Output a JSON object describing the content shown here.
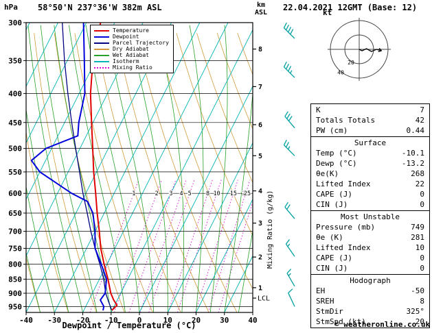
{
  "header": {
    "hpa": "hPa",
    "title": "58°50'N 237°36'W 382m ASL",
    "datetime": "22.04.2021 12GMT (Base: 12)",
    "alt_km": "km",
    "alt_asl": "ASL"
  },
  "legend": {
    "items": [
      {
        "label": "Temperature",
        "color": "#e00000",
        "dash": "solid"
      },
      {
        "label": "Dewpoint",
        "color": "#0000dd",
        "dash": "solid"
      },
      {
        "label": "Parcel Trajectory",
        "color": "#000080",
        "dash": "solid"
      },
      {
        "label": "Dry Adiabat",
        "color": "#d29a3a",
        "dash": "solid"
      },
      {
        "label": "Wet Adiabat",
        "color": "#28a028",
        "dash": "solid"
      },
      {
        "label": "Isotherm",
        "color": "#00b4b4",
        "dash": "solid"
      },
      {
        "label": "Mixing Ratio",
        "color": "#d800d8",
        "dash": "dotted"
      }
    ]
  },
  "axes": {
    "x_label": "Dewpoint / Temperature (°C)",
    "x_ticks": [
      -40,
      -30,
      -20,
      -10,
      0,
      10,
      20,
      30,
      40
    ],
    "pressure_unit": "hPa",
    "pressure_ticks": [
      300,
      350,
      400,
      450,
      500,
      550,
      600,
      650,
      700,
      750,
      800,
      850,
      900,
      950
    ],
    "km_ticks": [
      {
        "km": 8,
        "p": 334
      },
      {
        "km": 7,
        "p": 389
      },
      {
        "km": 6,
        "p": 454
      },
      {
        "km": 5,
        "p": 515
      },
      {
        "km": 4,
        "p": 594
      },
      {
        "km": 3,
        "p": 677
      },
      {
        "km": 2,
        "p": 777
      },
      {
        "km": 1,
        "p": 880
      }
    ],
    "lcl": {
      "label": "LCL",
      "p": 918
    },
    "mixing_label": "Mixing Ratio (g/kg)",
    "mixing_values": [
      1,
      2,
      3,
      4,
      5,
      8,
      10,
      15,
      20,
      25
    ]
  },
  "chart_data": {
    "type": "skewt-sounding",
    "pressure_range": [
      300,
      973
    ],
    "temp_range": [
      -40,
      40
    ],
    "temperature": [
      [
        965,
        -10.1
      ],
      [
        945,
        -9.2
      ],
      [
        925,
        -11.3
      ],
      [
        900,
        -13.5
      ],
      [
        850,
        -17
      ],
      [
        800,
        -21
      ],
      [
        750,
        -25
      ],
      [
        700,
        -28.5
      ],
      [
        650,
        -32.5
      ],
      [
        600,
        -36.5
      ],
      [
        550,
        -41
      ],
      [
        500,
        -45.5
      ],
      [
        450,
        -50.5
      ],
      [
        400,
        -56
      ],
      [
        350,
        -61
      ],
      [
        300,
        -65
      ]
    ],
    "dewpoint": [
      [
        965,
        -13.2
      ],
      [
        950,
        -13.6
      ],
      [
        925,
        -16
      ],
      [
        900,
        -15.5
      ],
      [
        850,
        -17.5
      ],
      [
        800,
        -22
      ],
      [
        750,
        -27
      ],
      [
        700,
        -30
      ],
      [
        650,
        -34
      ],
      [
        620,
        -38
      ],
      [
        600,
        -45
      ],
      [
        550,
        -60
      ],
      [
        525,
        -65
      ],
      [
        500,
        -62
      ],
      [
        475,
        -53
      ],
      [
        450,
        -55
      ],
      [
        400,
        -58
      ],
      [
        350,
        -64
      ],
      [
        300,
        -71
      ]
    ],
    "parcel": [
      [
        965,
        -10.1
      ],
      [
        930,
        -12.9
      ],
      [
        900,
        -15.3
      ],
      [
        850,
        -18.5
      ],
      [
        800,
        -22.5
      ],
      [
        750,
        -27
      ],
      [
        700,
        -31.5
      ],
      [
        650,
        -36
      ],
      [
        600,
        -41
      ],
      [
        550,
        -46
      ],
      [
        500,
        -51.5
      ],
      [
        450,
        -57.5
      ],
      [
        400,
        -64
      ],
      [
        350,
        -71
      ],
      [
        300,
        -78.5
      ]
    ],
    "wind_barbs": [
      {
        "p": 320,
        "spd": 40,
        "dir": 315
      },
      {
        "p": 375,
        "spd": 35,
        "dir": 315
      },
      {
        "p": 460,
        "spd": 30,
        "dir": 320
      },
      {
        "p": 515,
        "spd": 25,
        "dir": 315
      },
      {
        "p": 665,
        "spd": 20,
        "dir": 320
      },
      {
        "p": 775,
        "spd": 15,
        "dir": 325
      },
      {
        "p": 875,
        "spd": 15,
        "dir": 330
      },
      {
        "p": 950,
        "spd": 10,
        "dir": 335
      }
    ],
    "hodograph": {
      "unit": "kt",
      "rings": [
        20,
        40
      ],
      "trace": [
        [
          0,
          0
        ],
        [
          4,
          -2
        ],
        [
          10,
          1
        ],
        [
          17,
          -3
        ],
        [
          24,
          0
        ],
        [
          31,
          -2
        ]
      ]
    }
  },
  "stats": {
    "sections": [
      {
        "header": "",
        "rows": [
          [
            "K",
            "7"
          ],
          [
            "Totals Totals",
            "42"
          ],
          [
            "PW (cm)",
            "0.44"
          ]
        ]
      },
      {
        "header": "Surface",
        "rows": [
          [
            "Temp (°C)",
            "-10.1"
          ],
          [
            "Dewp (°C)",
            "-13.2"
          ],
          [
            "θe(K)",
            "268"
          ],
          [
            "Lifted Index",
            "22"
          ],
          [
            "CAPE (J)",
            "0"
          ],
          [
            "CIN (J)",
            "0"
          ]
        ]
      },
      {
        "header": "Most Unstable",
        "rows": [
          [
            "Pressure (mb)",
            "749"
          ],
          [
            "θe (K)",
            "281"
          ],
          [
            "Lifted Index",
            "10"
          ],
          [
            "CAPE (J)",
            "0"
          ],
          [
            "CIN (J)",
            "0"
          ]
        ]
      },
      {
        "header": "Hodograph",
        "rows": [
          [
            "EH",
            "-50"
          ],
          [
            "SREH",
            "8"
          ],
          [
            "StmDir",
            "325°"
          ],
          [
            "StmSpd (kt)",
            "20"
          ]
        ]
      }
    ]
  },
  "footer": {
    "copyright": "© weatheronline.co.uk"
  },
  "colors": {
    "temperature": "#e00000",
    "dewpoint": "#0000dd",
    "parcel": "#000080",
    "dry_adiabat": "#d29a3a",
    "wet_adiabat": "#28a028",
    "isotherm": "#00b4b4",
    "mixing_ratio": "#d800d8",
    "wind_barb": "#00a0a0",
    "grid": "#000000"
  }
}
